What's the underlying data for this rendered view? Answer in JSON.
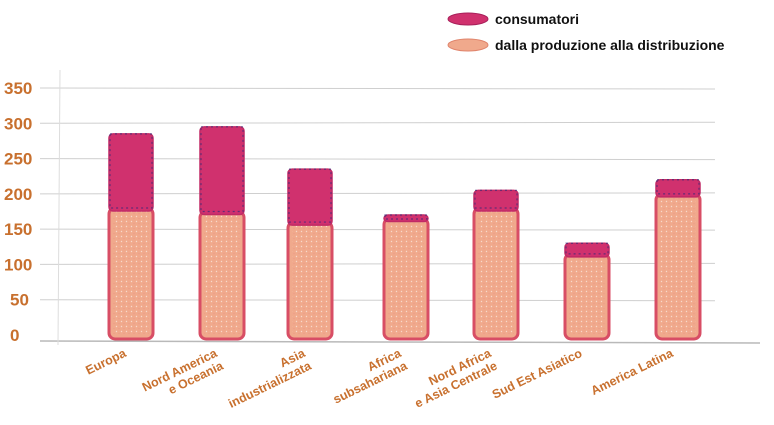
{
  "chart_data": {
    "type": "bar",
    "stacked": true,
    "categories": [
      [
        "Europa"
      ],
      [
        "Nord America",
        "e Oceania"
      ],
      [
        "Asia",
        "industrializzata"
      ],
      [
        "Africa",
        "subsahariana"
      ],
      [
        "Nord Africa",
        "e Asia Centrale"
      ],
      [
        "Sud Est Asiatico"
      ],
      [
        "America Latina"
      ]
    ],
    "series": [
      {
        "name": "dalla produzione alla distribuzione",
        "values": [
          180,
          175,
          160,
          165,
          180,
          115,
          200
        ],
        "color": "#f0a98c"
      },
      {
        "name": "consumatori",
        "values": [
          105,
          120,
          75,
          5,
          25,
          15,
          20
        ],
        "color": "#d0316e"
      }
    ],
    "legend_order": [
      "consumatori",
      "dalla produzione alla distribuzione"
    ],
    "yticks": [
      0,
      50,
      100,
      150,
      200,
      250,
      300,
      350
    ],
    "ylim": [
      0,
      350
    ],
    "grid": true,
    "legend_position": "top-right"
  },
  "colors": {
    "axis_text": "#c8702e",
    "legend_text": "#111111",
    "grid": "#cfcfcf",
    "bar_outline": "#d84e65",
    "consumer_scribble": "#3b2a78"
  }
}
